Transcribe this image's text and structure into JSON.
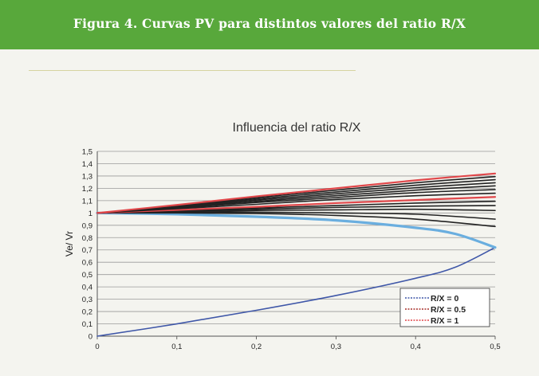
{
  "header": {
    "title": "Figura 4. Curvas PV para distintos valores del ratio R/X",
    "background": "#58a83b"
  },
  "chart_data": {
    "type": "line",
    "title": "Influencia del ratio R/X",
    "xlabel": "",
    "ylabel": "Ve/ Vr",
    "xlim": [
      0,
      0.5
    ],
    "ylim": [
      0,
      1.5
    ],
    "x_ticks": [
      "0",
      "0,1",
      "0,2",
      "0,3",
      "0,4",
      "0,5"
    ],
    "y_ticks": [
      "0",
      "0,1",
      "0,2",
      "0,3",
      "0,4",
      "0,5",
      "0,6",
      "0,7",
      "0,8",
      "0,9",
      "1",
      "1,1",
      "1,2",
      "1,3",
      "1,4",
      "1,5"
    ],
    "grid": "horizontal",
    "legend_position": "bottom-right",
    "legend": [
      {
        "label": "R/X = 0",
        "color": "#3f57a8"
      },
      {
        "label": "R/X = 0.5",
        "color": "#a8302c"
      },
      {
        "label": "R/X = 1",
        "color": "#e0474a"
      }
    ],
    "series": [
      {
        "color": "#3f57a8",
        "x": [
          0,
          0.1,
          0.2,
          0.3,
          0.4,
          0.45,
          0.5
        ],
        "y": [
          0,
          0.1,
          0.21,
          0.33,
          0.47,
          0.56,
          0.72
        ]
      },
      {
        "color": "#6aaedf",
        "x": [
          0,
          0.1,
          0.2,
          0.3,
          0.4,
          0.45,
          0.5
        ],
        "y": [
          1,
          0.99,
          0.97,
          0.94,
          0.88,
          0.83,
          0.72
        ]
      },
      {
        "color": "#222222",
        "x": [
          0,
          0.1,
          0.2,
          0.3,
          0.4,
          0.5
        ],
        "y": [
          1,
          1.0,
          0.995,
          0.98,
          0.95,
          0.89
        ]
      },
      {
        "color": "#222222",
        "x": [
          0,
          0.1,
          0.2,
          0.3,
          0.4,
          0.5
        ],
        "y": [
          1,
          1.005,
          1.007,
          1.0,
          0.99,
          0.95
        ]
      },
      {
        "color": "#222222",
        "x": [
          0,
          0.1,
          0.2,
          0.3,
          0.4,
          0.5
        ],
        "y": [
          1,
          1.01,
          1.02,
          1.025,
          1.03,
          1.02
        ]
      },
      {
        "color": "#222222",
        "x": [
          0,
          0.1,
          0.2,
          0.3,
          0.4,
          0.5
        ],
        "y": [
          1,
          1.015,
          1.03,
          1.045,
          1.055,
          1.06
        ]
      },
      {
        "color": "#222222",
        "x": [
          0,
          0.1,
          0.2,
          0.3,
          0.4,
          0.5
        ],
        "y": [
          1,
          1.02,
          1.04,
          1.06,
          1.08,
          1.095
        ]
      },
      {
        "color": "#e0474a",
        "x": [
          0,
          0.1,
          0.2,
          0.3,
          0.4,
          0.5
        ],
        "y": [
          1,
          1.025,
          1.05,
          1.08,
          1.105,
          1.13
        ]
      },
      {
        "color": "#222222",
        "x": [
          0,
          0.1,
          0.2,
          0.3,
          0.4,
          0.5
        ],
        "y": [
          1,
          1.035,
          1.07,
          1.11,
          1.14,
          1.16
        ]
      },
      {
        "color": "#222222",
        "x": [
          0,
          0.1,
          0.2,
          0.3,
          0.4,
          0.5
        ],
        "y": [
          1,
          1.04,
          1.085,
          1.125,
          1.165,
          1.19
        ]
      },
      {
        "color": "#222222",
        "x": [
          0,
          0.1,
          0.2,
          0.3,
          0.4,
          0.5
        ],
        "y": [
          1,
          1.045,
          1.095,
          1.14,
          1.185,
          1.22
        ]
      },
      {
        "color": "#222222",
        "x": [
          0,
          0.1,
          0.2,
          0.3,
          0.4,
          0.5
        ],
        "y": [
          1,
          1.05,
          1.105,
          1.155,
          1.205,
          1.245
        ]
      },
      {
        "color": "#222222",
        "x": [
          0,
          0.1,
          0.2,
          0.3,
          0.4,
          0.5
        ],
        "y": [
          1,
          1.055,
          1.115,
          1.17,
          1.225,
          1.27
        ]
      },
      {
        "color": "#222222",
        "x": [
          0,
          0.1,
          0.2,
          0.3,
          0.4,
          0.5
        ],
        "y": [
          1,
          1.06,
          1.125,
          1.185,
          1.245,
          1.295
        ]
      },
      {
        "color": "#e0474a",
        "x": [
          0,
          0.1,
          0.2,
          0.3,
          0.4,
          0.5
        ],
        "y": [
          1,
          1.065,
          1.135,
          1.2,
          1.265,
          1.32
        ]
      }
    ]
  }
}
